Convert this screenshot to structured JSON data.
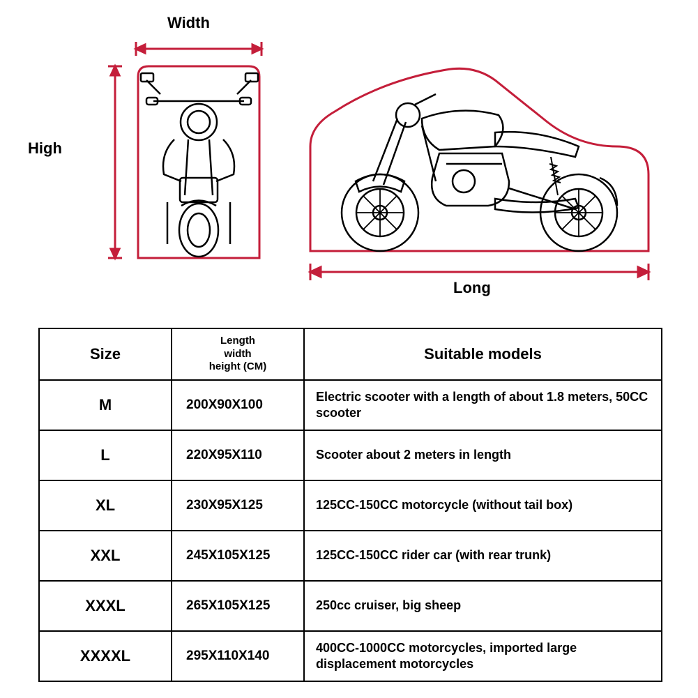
{
  "diagram": {
    "width_label": "Width",
    "high_label": "High",
    "long_label": "Long",
    "outline_color": "#c41e3a",
    "drawing_color": "#000000",
    "line_width": 3
  },
  "table": {
    "headers": {
      "size": "Size",
      "dimensions": "Length\nwidth\nheight (CM)",
      "models": "Suitable models"
    },
    "rows": [
      {
        "size": "M",
        "dim": "200X90X100",
        "model": "Electric scooter with a length of about 1.8 meters, 50CC scooter"
      },
      {
        "size": "L",
        "dim": "220X95X110",
        "model": "Scooter about 2 meters in length"
      },
      {
        "size": "XL",
        "dim": "230X95X125",
        "model": "125CC-150CC motorcycle (without tail box)"
      },
      {
        "size": "XXL",
        "dim": "245X105X125",
        "model": "125CC-150CC rider car (with rear trunk)"
      },
      {
        "size": "XXXL",
        "dim": "265X105X125",
        "model": "250cc cruiser, big sheep"
      },
      {
        "size": "XXXXL",
        "dim": "295X110X140",
        "model": "400CC-1000CC motorcycles, imported large displacement motorcycles"
      }
    ]
  }
}
